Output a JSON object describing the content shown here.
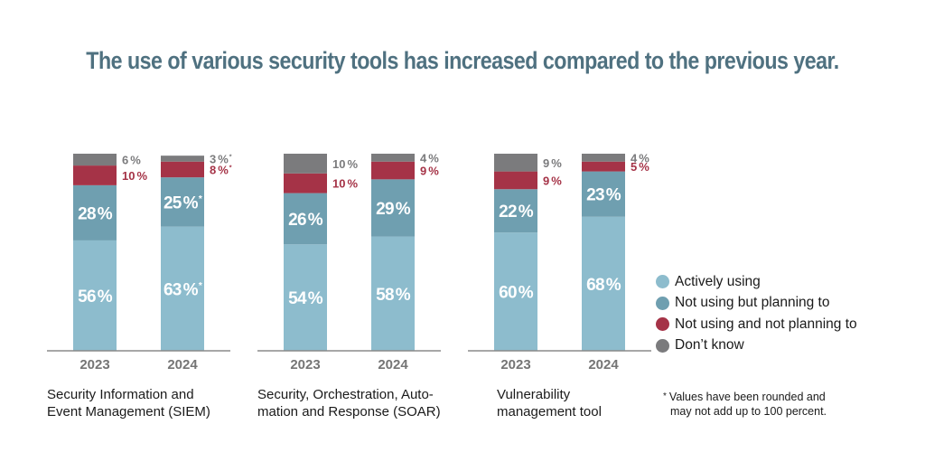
{
  "chart_data": {
    "type": "bar",
    "stacked": true,
    "title": "The use of various security tools has increased compared to the previous year.",
    "series": [
      {
        "name": "Actively using",
        "color": "#8dbccd"
      },
      {
        "name": "Not using but planning to",
        "color": "#6f9fb0"
      },
      {
        "name": "Not using and not planning to",
        "color": "#a53347"
      },
      {
        "name": "Don’t know",
        "color": "#7b7b7d"
      }
    ],
    "groups": [
      {
        "caption": [
          "Security Information and",
          "Event Management (SIEM)"
        ],
        "bars": [
          {
            "year": "2023",
            "values": [
              56,
              28,
              10,
              6
            ],
            "labels": [
              "56 %",
              "28 %",
              "10 %",
              "6 %"
            ]
          },
          {
            "year": "2024",
            "values": [
              63,
              25,
              8,
              3
            ],
            "labels": [
              "63 %*",
              "25 %*",
              "8 %*",
              "3 %*"
            ]
          }
        ]
      },
      {
        "caption": [
          "Security, Orchestration, Auto-",
          "mation and Response (SOAR)"
        ],
        "bars": [
          {
            "year": "2023",
            "values": [
              54,
              26,
              10,
              10
            ],
            "labels": [
              "54 %",
              "26 %",
              "10 %",
              "10 %"
            ]
          },
          {
            "year": "2024",
            "values": [
              58,
              29,
              9,
              4
            ],
            "labels": [
              "58 %",
              "29 %",
              "9 %",
              "4 %"
            ]
          }
        ]
      },
      {
        "caption": [
          "Vulnerability",
          "management tool"
        ],
        "bars": [
          {
            "year": "2023",
            "values": [
              60,
              22,
              9,
              9
            ],
            "labels": [
              "60 %",
              "22 %",
              "9 %",
              "9 %"
            ]
          },
          {
            "year": "2024",
            "values": [
              68,
              23,
              5,
              4
            ],
            "labels": [
              "68 %",
              "23 %",
              "5 %",
              "4 %"
            ]
          }
        ]
      }
    ],
    "ylim": [
      0,
      100
    ],
    "legend_position": "right",
    "footnote": [
      "Values have been rounded and",
      "may not add up to 100 percent."
    ],
    "footnote_marker": "*"
  },
  "colors": {
    "title": "#4f7180",
    "axis": "#8a8a8a",
    "inside_label": "#ffffff",
    "gray_label": "#7b7b7d",
    "red_label": "#a53347"
  }
}
